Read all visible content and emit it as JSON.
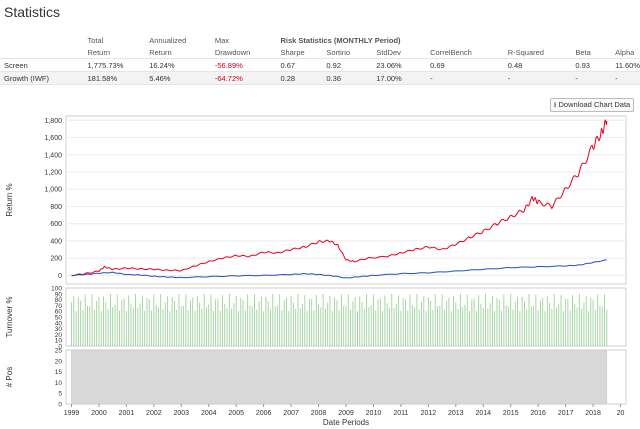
{
  "page": {
    "title": "Statistics",
    "download_label": "Download Chart Data"
  },
  "table": {
    "header_row1": [
      "",
      "Total",
      "Annualized",
      "Max",
      "Risk Statistics (MONTHLY Period)",
      "",
      "",
      "",
      "",
      "",
      ""
    ],
    "header_row2": [
      "",
      "Return",
      "Return",
      "Drawdown",
      "Sharpe",
      "Sortino",
      "StdDev",
      "CorrelBench",
      "R-Squared",
      "Beta",
      "Alpha"
    ],
    "rows": [
      {
        "name": "Screen",
        "cells": [
          "1,775.73%",
          "16.24%",
          "-56.89%",
          "0.67",
          "0.92",
          "23.06%",
          "0.69",
          "0.48",
          "0.93",
          "11.60%"
        ]
      },
      {
        "name": "Growth (IWF)",
        "cells": [
          "181.58%",
          "5.46%",
          "-64.72%",
          "0.28",
          "0.36",
          "17.00%",
          "-",
          "-",
          "-",
          "-"
        ]
      }
    ]
  },
  "chart_data": {
    "type": "line",
    "xlabel": "Date Periods",
    "x_ticks": [
      "1999",
      "2000",
      "2001",
      "2002",
      "2003",
      "2004",
      "2005",
      "2006",
      "2007",
      "2008",
      "2009",
      "2010",
      "2011",
      "2012",
      "2013",
      "2014",
      "2015",
      "2016",
      "2017",
      "2018",
      "20"
    ],
    "colors": {
      "screen": "#e8001c",
      "benchmark": "#1f4fbf",
      "turnover": "#9ed19e",
      "pos": "#d8d8d8"
    },
    "panels": [
      {
        "name": "return",
        "ylabel": "Return %",
        "ylim": [
          -100,
          1850
        ],
        "y_ticks": [
          "1,800",
          "1,600",
          "1,400",
          "1,200",
          "1,000",
          "800",
          "600",
          "400",
          "200",
          "0"
        ],
        "series": [
          {
            "x": [
              1999.0,
              1999.5,
              2000.0,
              2000.2,
              2000.5,
              2001.0,
              2001.5,
              2002.0,
              2002.5,
              2003.0,
              2003.5,
              2004.0,
              2004.5,
              2005.0,
              2005.5,
              2006.0,
              2006.5,
              2007.0,
              2007.5,
              2008.0,
              2008.4,
              2008.7,
              2009.0,
              2009.3,
              2009.8,
              2010.5,
              2011.0,
              2011.5,
              2012.0,
              2012.5,
              2013.0,
              2013.5,
              2014.0,
              2014.5,
              2015.0,
              2015.5,
              2015.8,
              2016.0,
              2016.5,
              2017.0,
              2017.5,
              2018.0,
              2018.3,
              2018.5
            ],
            "values": [
              0,
              20,
              50,
              100,
              70,
              85,
              75,
              70,
              60,
              55,
              110,
              160,
              200,
              230,
              220,
              270,
              260,
              300,
              330,
              390,
              400,
              350,
              180,
              160,
              200,
              220,
              260,
              300,
              330,
              300,
              360,
              440,
              510,
              600,
              680,
              760,
              900,
              850,
              800,
              1000,
              1200,
              1500,
              1650,
              1790
            ]
          },
          {
            "x": [
              1999.0,
              1999.5,
              2000.0,
              2000.5,
              2001.0,
              2001.5,
              2002.0,
              2002.5,
              2003.0,
              2004.0,
              2005.0,
              2006.0,
              2007.0,
              2007.5,
              2008.0,
              2008.5,
              2009.0,
              2009.5,
              2010.0,
              2011.0,
              2012.0,
              2013.0,
              2014.0,
              2015.0,
              2016.0,
              2017.0,
              2017.5,
              2018.0,
              2018.5
            ],
            "values": [
              0,
              10,
              25,
              35,
              10,
              5,
              -10,
              -20,
              -25,
              -15,
              -5,
              0,
              10,
              20,
              10,
              -5,
              -30,
              -15,
              0,
              20,
              30,
              50,
              70,
              90,
              100,
              110,
              120,
              150,
              180
            ]
          }
        ]
      },
      {
        "name": "turnover",
        "ylabel": "Turnover %",
        "ylim": [
          0,
          100
        ],
        "y_ticks": [
          "100",
          "90",
          "80",
          "70",
          "60",
          "50",
          "40",
          "30",
          "20",
          "10",
          "0"
        ],
        "typical_values_range": [
          60,
          90
        ]
      },
      {
        "name": "positions",
        "ylabel": "# Pos",
        "ylim": [
          0,
          25
        ],
        "y_ticks": [
          "25",
          "20",
          "15",
          "10",
          "5",
          "0"
        ],
        "value": 25
      }
    ]
  }
}
